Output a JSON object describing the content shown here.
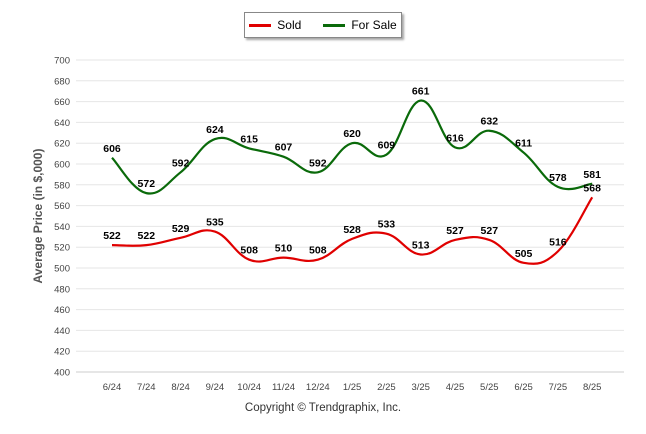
{
  "chart_data": {
    "type": "line",
    "categories": [
      "6/24",
      "7/24",
      "8/24",
      "9/24",
      "10/24",
      "11/24",
      "12/24",
      "1/25",
      "2/25",
      "3/25",
      "4/25",
      "5/25",
      "6/25",
      "7/25",
      "8/25"
    ],
    "series": [
      {
        "name": "Sold",
        "color": "#e00000",
        "values": [
          522,
          522,
          529,
          535,
          508,
          510,
          508,
          528,
          533,
          513,
          527,
          527,
          505,
          516,
          568
        ]
      },
      {
        "name": "For Sale",
        "color": "#0a6a0a",
        "values": [
          606,
          572,
          592,
          624,
          615,
          607,
          592,
          620,
          609,
          661,
          616,
          632,
          611,
          578,
          581
        ]
      }
    ],
    "ylabel": "Average Price (in $,000)",
    "ylim": [
      400,
      700
    ],
    "yticks": [
      400,
      420,
      440,
      460,
      480,
      500,
      520,
      540,
      560,
      580,
      600,
      620,
      640,
      660,
      680,
      700
    ],
    "grid": true,
    "legend_position": "top-center"
  },
  "footer": {
    "copyright": "Copyright © Trendgraphix, Inc."
  }
}
